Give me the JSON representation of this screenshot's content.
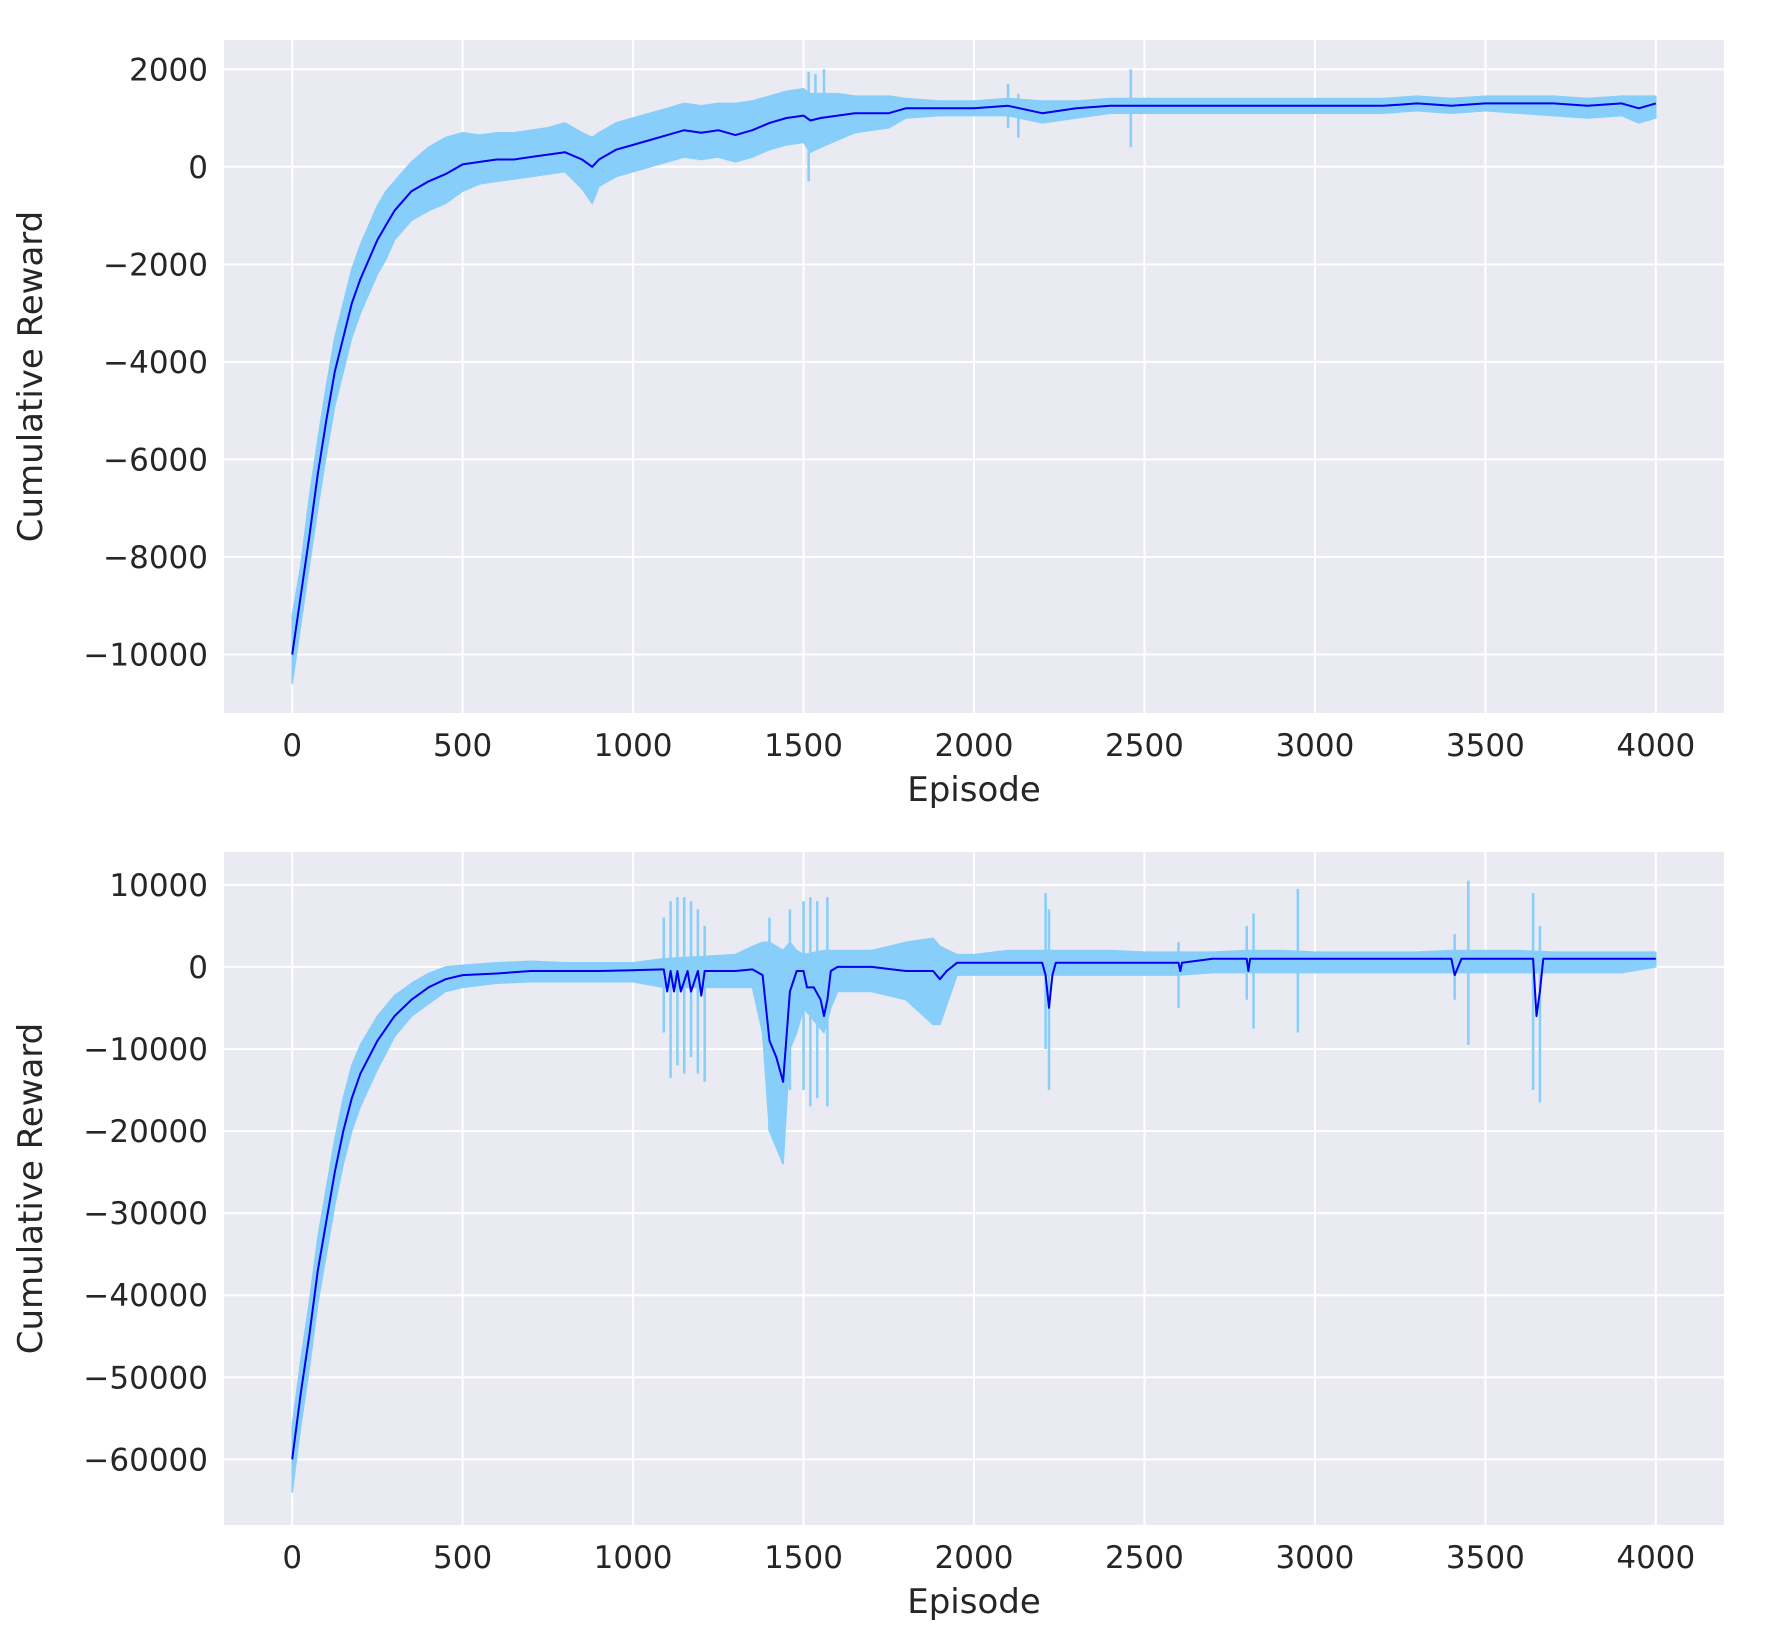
{
  "colors": {
    "background": "#eaeaf2",
    "grid": "#ffffff",
    "raw": "#87cefa",
    "mean": "#0000ee",
    "text": "#262626"
  },
  "chart_data": [
    {
      "type": "line",
      "title": "",
      "xlabel": "Episode",
      "ylabel": "Cumulative Reward",
      "xlim": [
        -200,
        4200
      ],
      "ylim": [
        -11200,
        2600
      ],
      "xticks": [
        0,
        500,
        1000,
        1500,
        2000,
        2500,
        3000,
        3500,
        4000
      ],
      "xtick_labels": [
        "0",
        "500",
        "1000",
        "1500",
        "2000",
        "2500",
        "3000",
        "3500",
        "4000"
      ],
      "yticks": [
        2000,
        0,
        -2000,
        -4000,
        -6000,
        -8000,
        -10000
      ],
      "ytick_labels": [
        "2000",
        "0",
        "−2000",
        "−4000",
        "−6000",
        "−8000",
        "−10000"
      ],
      "grid": true,
      "legend": "none",
      "series": [
        {
          "role": "mean",
          "color": "#0000ee",
          "x": [
            0,
            25,
            50,
            75,
            100,
            125,
            150,
            175,
            200,
            225,
            250,
            275,
            300,
            350,
            400,
            450,
            500,
            550,
            600,
            650,
            700,
            750,
            800,
            850,
            880,
            900,
            950,
            1000,
            1050,
            1100,
            1150,
            1200,
            1250,
            1300,
            1350,
            1400,
            1450,
            1500,
            1520,
            1550,
            1600,
            1650,
            1700,
            1750,
            1800,
            1900,
            2000,
            2100,
            2200,
            2300,
            2400,
            2500,
            2600,
            2700,
            2800,
            2900,
            3000,
            3100,
            3200,
            3300,
            3400,
            3500,
            3600,
            3700,
            3800,
            3900,
            3950,
            4000
          ],
          "y": [
            -10000,
            -8800,
            -7600,
            -6300,
            -5200,
            -4200,
            -3500,
            -2800,
            -2300,
            -1900,
            -1500,
            -1200,
            -900,
            -500,
            -300,
            -150,
            50,
            100,
            150,
            150,
            200,
            250,
            300,
            150,
            0,
            150,
            350,
            450,
            550,
            650,
            750,
            700,
            750,
            650,
            750,
            900,
            1000,
            1050,
            950,
            1000,
            1050,
            1100,
            1100,
            1100,
            1200,
            1200,
            1200,
            1250,
            1100,
            1200,
            1250,
            1250,
            1250,
            1250,
            1250,
            1250,
            1250,
            1250,
            1250,
            1300,
            1250,
            1300,
            1300,
            1300,
            1250,
            1300,
            1200,
            1300
          ]
        },
        {
          "role": "band",
          "color": "#87cefa",
          "x": [
            0,
            25,
            50,
            75,
            100,
            125,
            150,
            175,
            200,
            225,
            250,
            275,
            300,
            350,
            400,
            450,
            500,
            550,
            600,
            650,
            700,
            750,
            800,
            850,
            880,
            900,
            950,
            1000,
            1050,
            1100,
            1150,
            1200,
            1250,
            1300,
            1350,
            1400,
            1450,
            1500,
            1520,
            1550,
            1600,
            1650,
            1700,
            1750,
            1800,
            1900,
            2000,
            2100,
            2200,
            2300,
            2400,
            2500,
            2600,
            2700,
            2800,
            2900,
            3000,
            3100,
            3200,
            3300,
            3400,
            3500,
            3600,
            3700,
            3800,
            3900,
            3950,
            4000
          ],
          "upper": [
            -9200,
            -8200,
            -6800,
            -5600,
            -4500,
            -3500,
            -2800,
            -2100,
            -1600,
            -1200,
            -800,
            -500,
            -300,
            100,
            400,
            600,
            700,
            650,
            700,
            700,
            750,
            800,
            900,
            700,
            600,
            700,
            900,
            1000,
            1100,
            1200,
            1300,
            1250,
            1300,
            1300,
            1350,
            1450,
            1550,
            1600,
            1500,
            1500,
            1500,
            1450,
            1450,
            1450,
            1400,
            1350,
            1350,
            1400,
            1350,
            1350,
            1400,
            1400,
            1400,
            1400,
            1400,
            1400,
            1400,
            1400,
            1400,
            1450,
            1400,
            1450,
            1450,
            1450,
            1400,
            1450,
            1450,
            1450
          ],
          "lower": [
            -10600,
            -9400,
            -8200,
            -7000,
            -5900,
            -4900,
            -4200,
            -3500,
            -3000,
            -2600,
            -2200,
            -1900,
            -1500,
            -1100,
            -900,
            -750,
            -500,
            -350,
            -300,
            -250,
            -200,
            -150,
            -100,
            -450,
            -750,
            -400,
            -200,
            -100,
            0,
            100,
            200,
            150,
            200,
            100,
            200,
            350,
            450,
            500,
            300,
            400,
            550,
            700,
            750,
            800,
            1000,
            1050,
            1050,
            1050,
            900,
            1000,
            1100,
            1100,
            1100,
            1100,
            1100,
            1100,
            1100,
            1100,
            1100,
            1150,
            1100,
            1150,
            1100,
            1050,
            1000,
            1050,
            900,
            1000
          ]
        },
        {
          "role": "spikes",
          "color": "#87cefa",
          "x": [
            1515,
            1535,
            1560,
            2100,
            2130,
            2460
          ],
          "top": [
            1950,
            1900,
            2000,
            1700,
            1500,
            2000
          ],
          "bottom": [
            -300,
            600,
            500,
            800,
            600,
            400
          ]
        }
      ]
    },
    {
      "type": "line",
      "title": "",
      "xlabel": "Episode",
      "ylabel": "Cumulative Reward",
      "xlim": [
        -200,
        4200
      ],
      "ylim": [
        -68000,
        14000
      ],
      "xticks": [
        0,
        500,
        1000,
        1500,
        2000,
        2500,
        3000,
        3500,
        4000
      ],
      "xtick_labels": [
        "0",
        "500",
        "1000",
        "1500",
        "2000",
        "2500",
        "3000",
        "3500",
        "4000"
      ],
      "yticks": [
        10000,
        0,
        -10000,
        -20000,
        -30000,
        -40000,
        -50000,
        -60000
      ],
      "ytick_labels": [
        "10000",
        "0",
        "−10000",
        "−20000",
        "−30000",
        "−40000",
        "−50000",
        "−60000"
      ],
      "grid": true,
      "legend": "none",
      "series": [
        {
          "role": "mean",
          "color": "#0000ee",
          "x": [
            0,
            25,
            50,
            75,
            100,
            125,
            150,
            175,
            200,
            250,
            300,
            350,
            400,
            450,
            500,
            600,
            700,
            800,
            900,
            1000,
            1090,
            1100,
            1110,
            1120,
            1130,
            1140,
            1160,
            1170,
            1190,
            1200,
            1210,
            1230,
            1300,
            1350,
            1380,
            1400,
            1420,
            1440,
            1460,
            1480,
            1500,
            1510,
            1530,
            1550,
            1560,
            1570,
            1580,
            1600,
            1700,
            1800,
            1880,
            1900,
            1920,
            1950,
            2000,
            2100,
            2200,
            2210,
            2220,
            2230,
            2240,
            2300,
            2400,
            2500,
            2600,
            2605,
            2610,
            2700,
            2800,
            2805,
            2810,
            2900,
            3000,
            3100,
            3200,
            3300,
            3400,
            3410,
            3420,
            3430,
            3500,
            3600,
            3640,
            3650,
            3660,
            3670,
            3700,
            3800,
            3900,
            4000
          ],
          "y": [
            -60000,
            -52000,
            -45000,
            -37000,
            -31000,
            -25000,
            -20000,
            -16000,
            -13000,
            -9000,
            -6000,
            -4000,
            -2500,
            -1500,
            -1000,
            -800,
            -500,
            -500,
            -500,
            -400,
            -300,
            -3000,
            -500,
            -3000,
            -500,
            -3000,
            -500,
            -3000,
            -500,
            -3500,
            -500,
            -500,
            -500,
            -300,
            -1000,
            -9000,
            -11000,
            -14000,
            -3000,
            -500,
            -500,
            -2500,
            -2500,
            -4000,
            -6000,
            -4000,
            -500,
            0,
            0,
            -500,
            -500,
            -1500,
            -500,
            500,
            500,
            500,
            500,
            -1000,
            -5000,
            -1000,
            500,
            500,
            500,
            500,
            500,
            -500,
            500,
            1000,
            1000,
            -500,
            1000,
            1000,
            1000,
            1000,
            1000,
            1000,
            1000,
            -1000,
            0,
            1000,
            1000,
            1000,
            1000,
            -6000,
            -3000,
            1000,
            1000,
            1000,
            1000,
            1000
          ]
        },
        {
          "role": "band",
          "color": "#87cefa",
          "x": [
            0,
            25,
            50,
            75,
            100,
            125,
            150,
            175,
            200,
            250,
            300,
            350,
            400,
            450,
            500,
            600,
            700,
            800,
            900,
            1000,
            1090,
            1300,
            1350,
            1380,
            1400,
            1420,
            1440,
            1460,
            1480,
            1500,
            1560,
            1580,
            1600,
            1700,
            1800,
            1880,
            1900,
            1950,
            2000,
            2100,
            2200,
            2240,
            2300,
            2400,
            2500,
            2600,
            2700,
            2800,
            2900,
            3000,
            3100,
            3200,
            3300,
            3400,
            3500,
            3600,
            3700,
            3800,
            3900,
            4000
          ],
          "upper": [
            -56000,
            -48000,
            -41000,
            -33000,
            -27000,
            -21000,
            -16000,
            -12000,
            -9500,
            -6000,
            -3500,
            -2000,
            -800,
            0,
            200,
            500,
            700,
            500,
            500,
            500,
            1000,
            1500,
            2500,
            3000,
            3000,
            2500,
            2000,
            3000,
            2000,
            1500,
            2000,
            2000,
            2000,
            2000,
            3000,
            3500,
            2500,
            1500,
            1500,
            2000,
            2000,
            2000,
            2000,
            2000,
            1800,
            1800,
            1800,
            2000,
            2000,
            1800,
            1800,
            1800,
            1800,
            2000,
            2000,
            2000,
            1800,
            1800,
            1800,
            1800
          ],
          "lower": [
            -64000,
            -56000,
            -49000,
            -41000,
            -35000,
            -29000,
            -24000,
            -20000,
            -17000,
            -12500,
            -8500,
            -6000,
            -4500,
            -3000,
            -2500,
            -2000,
            -1800,
            -1800,
            -1800,
            -1800,
            -2500,
            -2500,
            -2500,
            -8000,
            -20000,
            -22000,
            -24000,
            -10000,
            -8000,
            -5000,
            -8000,
            -5000,
            -3000,
            -3000,
            -4000,
            -7000,
            -7000,
            -1000,
            -1000,
            -1000,
            -1000,
            -1000,
            -1000,
            -1000,
            -1000,
            -1000,
            -700,
            -700,
            -700,
            -700,
            -700,
            -700,
            -700,
            -700,
            -700,
            -700,
            -700,
            -700,
            -700,
            0
          ]
        },
        {
          "role": "spikes",
          "color": "#87cefa",
          "x": [
            1090,
            1110,
            1130,
            1150,
            1170,
            1190,
            1210,
            1400,
            1460,
            1500,
            1520,
            1540,
            1570,
            2210,
            2220,
            2600,
            2800,
            2820,
            2950,
            3410,
            3450,
            3640,
            3660
          ],
          "top": [
            6000,
            8000,
            8500,
            8500,
            8000,
            7000,
            5000,
            6000,
            7000,
            8000,
            8500,
            8000,
            8500,
            9000,
            7000,
            3000,
            5000,
            6500,
            9500,
            4000,
            10500,
            9000,
            5000
          ],
          "bottom": [
            -8000,
            -13500,
            -12000,
            -13000,
            -11000,
            -13000,
            -14000,
            -20000,
            -15000,
            -15000,
            -17000,
            -16000,
            -17000,
            -10000,
            -15000,
            -5000,
            -4000,
            -7500,
            -8000,
            -4000,
            -9500,
            -15000,
            -16500
          ]
        }
      ]
    }
  ]
}
